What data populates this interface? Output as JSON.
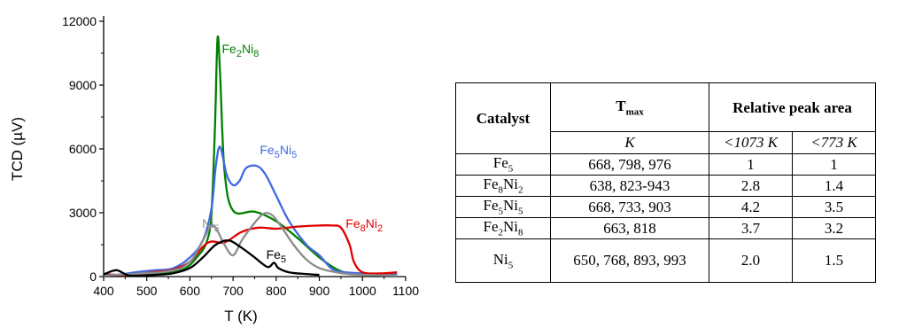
{
  "chart_data": {
    "type": "line",
    "xlabel": "T (K)",
    "ylabel": "TCD (µV)",
    "xlim": [
      400,
      1100
    ],
    "ylim": [
      0,
      12000
    ],
    "xticks": [
      400,
      500,
      600,
      700,
      800,
      900,
      1000,
      1100
    ],
    "yticks": [
      0,
      3000,
      6000,
      9000,
      12000
    ],
    "grid": false,
    "legend": "none",
    "series": [
      {
        "name": "Fe2Ni8",
        "color": "#008000",
        "points": [
          [
            400,
            60
          ],
          [
            500,
            120
          ],
          [
            580,
            300
          ],
          [
            620,
            1000
          ],
          [
            640,
            1700
          ],
          [
            650,
            3000
          ],
          [
            658,
            7000
          ],
          [
            664,
            11200
          ],
          [
            670,
            9500
          ],
          [
            680,
            5000
          ],
          [
            700,
            3100
          ],
          [
            750,
            3050
          ],
          [
            800,
            2600
          ],
          [
            850,
            1800
          ],
          [
            900,
            900
          ],
          [
            950,
            250
          ],
          [
            1000,
            100
          ],
          [
            1080,
            100
          ]
        ]
      },
      {
        "name": "Fe5Ni5",
        "color": "#4169E1",
        "points": [
          [
            400,
            150
          ],
          [
            430,
            80
          ],
          [
            480,
            220
          ],
          [
            520,
            300
          ],
          [
            560,
            380
          ],
          [
            600,
            900
          ],
          [
            630,
            1700
          ],
          [
            650,
            3200
          ],
          [
            660,
            5200
          ],
          [
            670,
            6100
          ],
          [
            685,
            4800
          ],
          [
            700,
            4300
          ],
          [
            715,
            4500
          ],
          [
            730,
            5100
          ],
          [
            755,
            5200
          ],
          [
            775,
            4800
          ],
          [
            800,
            3800
          ],
          [
            830,
            2600
          ],
          [
            870,
            1500
          ],
          [
            900,
            1000
          ],
          [
            930,
            350
          ],
          [
            960,
            200
          ],
          [
            1000,
            150
          ],
          [
            1080,
            100
          ]
        ]
      },
      {
        "name": "Fe8Ni2",
        "color": "#e00000",
        "points": [
          [
            400,
            100
          ],
          [
            460,
            80
          ],
          [
            520,
            220
          ],
          [
            560,
            320
          ],
          [
            600,
            700
          ],
          [
            630,
            1400
          ],
          [
            650,
            1650
          ],
          [
            680,
            1600
          ],
          [
            720,
            2100
          ],
          [
            760,
            2300
          ],
          [
            800,
            2250
          ],
          [
            850,
            2350
          ],
          [
            900,
            2400
          ],
          [
            930,
            2400
          ],
          [
            950,
            2300
          ],
          [
            970,
            1500
          ],
          [
            980,
            700
          ],
          [
            1000,
            200
          ],
          [
            1040,
            150
          ],
          [
            1080,
            200
          ]
        ]
      },
      {
        "name": "Ni5",
        "color": "#8c8c8c",
        "points": [
          [
            400,
            50
          ],
          [
            550,
            250
          ],
          [
            600,
            700
          ],
          [
            630,
            1700
          ],
          [
            650,
            2400
          ],
          [
            665,
            2100
          ],
          [
            680,
            1500
          ],
          [
            700,
            1000
          ],
          [
            720,
            1700
          ],
          [
            745,
            2400
          ],
          [
            770,
            2950
          ],
          [
            790,
            2900
          ],
          [
            810,
            2400
          ],
          [
            840,
            1500
          ],
          [
            870,
            800
          ],
          [
            900,
            400
          ],
          [
            940,
            200
          ],
          [
            980,
            100
          ],
          [
            1080,
            50
          ]
        ]
      },
      {
        "name": "Fe5",
        "color": "#000000",
        "points": [
          [
            400,
            100
          ],
          [
            430,
            300
          ],
          [
            460,
            50
          ],
          [
            520,
            80
          ],
          [
            560,
            150
          ],
          [
            600,
            400
          ],
          [
            630,
            900
          ],
          [
            660,
            1500
          ],
          [
            690,
            1700
          ],
          [
            720,
            1350
          ],
          [
            750,
            900
          ],
          [
            780,
            450
          ],
          [
            795,
            650
          ],
          [
            805,
            400
          ],
          [
            830,
            200
          ],
          [
            870,
            120
          ],
          [
            900,
            80
          ]
        ]
      }
    ],
    "annotations": [
      {
        "label_html": "Fe<sub>2</sub>Ni<sub>8</sub>",
        "series": "Fe2Ni8",
        "color": "#008000",
        "at": [
          717,
          10650
        ]
      },
      {
        "label_html": "Fe<sub>5</sub>Ni<sub>5</sub>",
        "series": "Fe5Ni5",
        "color": "#4169E1",
        "at": [
          805,
          5900
        ]
      },
      {
        "label_html": "Ni<sub>5</sub>",
        "series": "Ni5",
        "color": "#8c8c8c",
        "at": [
          648,
          2450
        ]
      },
      {
        "label_html": "Fe<sub>8</sub>Ni<sub>2</sub>",
        "series": "Fe8Ni2",
        "color": "#e00000",
        "at": [
          1004,
          2450
        ]
      },
      {
        "label_html": "Fe<sub>5</sub>",
        "series": "Fe5",
        "color": "#000000",
        "at": [
          800,
          1000
        ]
      }
    ]
  },
  "table": {
    "headers": {
      "catalyst": "Catalyst",
      "tmax_html": "T<sub>max</sub>",
      "relative_peak_area": "Relative peak area"
    },
    "units": {
      "tmax": "K",
      "below_1073": "<1073 K",
      "below_773": "<773 K"
    },
    "rows": [
      {
        "catalyst_html": "Fe<sub>5</sub>",
        "tmax": "668, 798, 976",
        "a1073": "1",
        "a773": "1"
      },
      {
        "catalyst_html": "Fe<sub>8</sub>Ni<sub>2</sub>",
        "tmax": "638, 823-943",
        "a1073": "2.8",
        "a773": "1.4"
      },
      {
        "catalyst_html": "Fe<sub>5</sub>Ni<sub>5</sub>",
        "tmax": "668, 733, 903",
        "a1073": "4.2",
        "a773": "3.5"
      },
      {
        "catalyst_html": "Fe<sub>2</sub>Ni<sub>8</sub>",
        "tmax": "663, 818",
        "a1073": "3.7",
        "a773": "3.2"
      },
      {
        "catalyst_html": "Ni<sub>5</sub>",
        "tmax": "650, 768, 893, 993",
        "a1073": "2.0",
        "a773": "1.5"
      }
    ]
  }
}
